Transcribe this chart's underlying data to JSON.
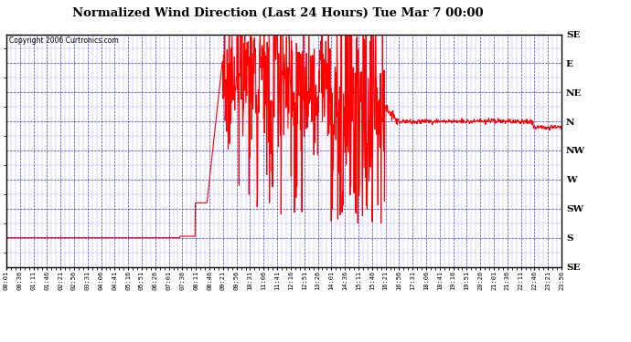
{
  "title": "Normalized Wind Direction (Last 24 Hours) Tue Mar 7 00:00",
  "copyright": "Copyright 2006 Curtronics.com",
  "line_color": "#FF0000",
  "grid_color": "#0000FF",
  "ytick_labels_top_to_bottom": [
    "SE",
    "E",
    "NE",
    "N",
    "NW",
    "W",
    "SW",
    "S",
    "SE"
  ],
  "ytick_values": [
    8,
    7,
    6,
    5,
    4,
    3,
    2,
    1,
    0
  ],
  "ylim": [
    0,
    8
  ],
  "xtick_labels": [
    "00:01",
    "00:36",
    "01:11",
    "01:46",
    "02:21",
    "02:56",
    "03:31",
    "04:06",
    "04:41",
    "05:16",
    "05:51",
    "06:26",
    "07:01",
    "07:36",
    "08:11",
    "08:46",
    "09:21",
    "09:56",
    "10:31",
    "11:06",
    "11:41",
    "12:16",
    "12:51",
    "13:26",
    "14:01",
    "14:36",
    "15:11",
    "15:46",
    "16:21",
    "16:56",
    "17:31",
    "18:06",
    "18:41",
    "19:16",
    "19:51",
    "20:26",
    "21:01",
    "21:36",
    "22:11",
    "22:46",
    "23:21",
    "23:56"
  ],
  "figsize": [
    6.9,
    3.75
  ],
  "dpi": 100
}
